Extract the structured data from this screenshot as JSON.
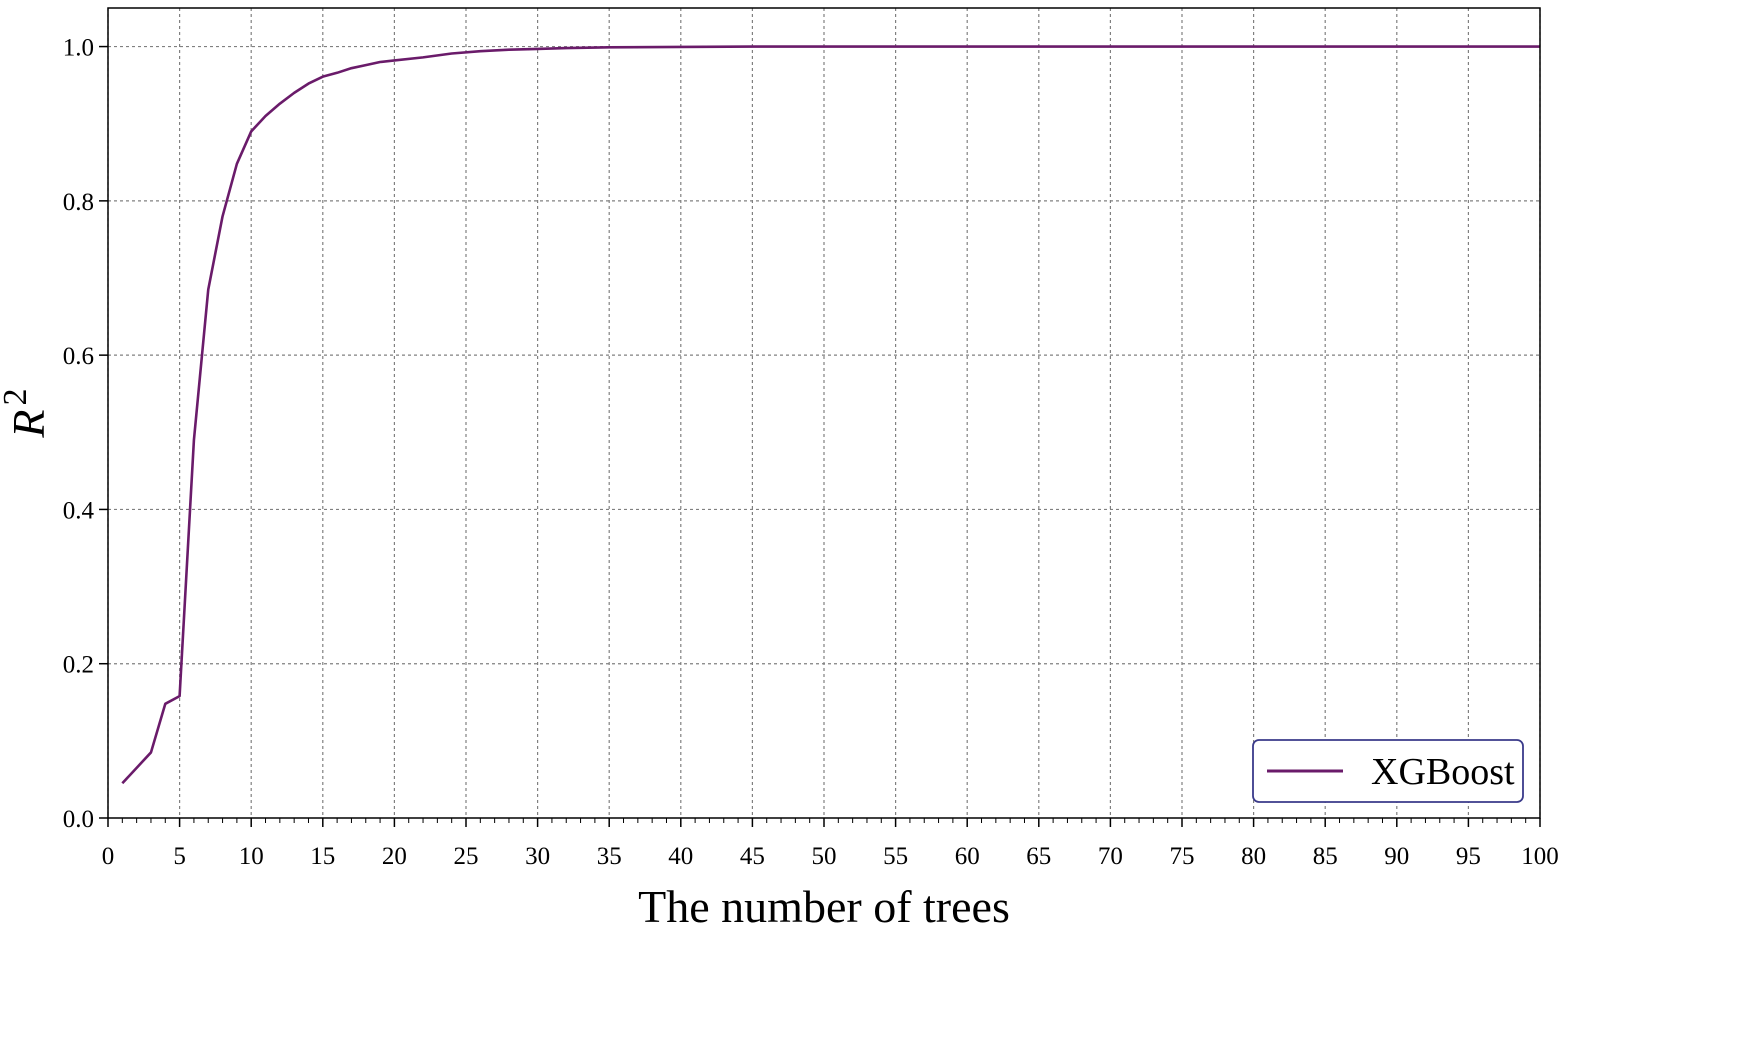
{
  "chart_data": {
    "type": "line",
    "xlabel": "The number of trees",
    "ylabel": "R",
    "ylabel_superscript": "2",
    "xlim": [
      0,
      100
    ],
    "ylim": [
      0.0,
      1.05
    ],
    "xticks": [
      0,
      5,
      10,
      15,
      20,
      25,
      30,
      35,
      40,
      45,
      50,
      55,
      60,
      65,
      70,
      75,
      80,
      85,
      90,
      95,
      100
    ],
    "xtick_labels": [
      "0",
      "5",
      "10",
      "15",
      "20",
      "25",
      "30",
      "35",
      "40",
      "45",
      "50",
      "55",
      "60",
      "65",
      "70",
      "75",
      "80",
      "85",
      "90",
      "95",
      "100"
    ],
    "yticks": [
      0.0,
      0.2,
      0.4,
      0.6,
      0.8,
      1.0
    ],
    "ytick_labels": [
      "0.0",
      "0.2",
      "0.4",
      "0.6",
      "0.8",
      "1.0"
    ],
    "x_minor_step": 1,
    "grid": true,
    "legend_position": "bottom-right",
    "series": [
      {
        "name": "XGBoost",
        "color": "#6a1b6a",
        "x": [
          1,
          2,
          3,
          4,
          5,
          6,
          7,
          8,
          9,
          10,
          11,
          12,
          13,
          14,
          15,
          16,
          17,
          18,
          19,
          20,
          22,
          24,
          26,
          28,
          30,
          32,
          35,
          40,
          45,
          50,
          60,
          70,
          80,
          90,
          100
        ],
        "y": [
          0.045,
          0.065,
          0.085,
          0.148,
          0.158,
          0.49,
          0.685,
          0.78,
          0.848,
          0.89,
          0.91,
          0.926,
          0.94,
          0.952,
          0.961,
          0.966,
          0.972,
          0.976,
          0.98,
          0.982,
          0.986,
          0.991,
          0.994,
          0.996,
          0.997,
          0.998,
          0.999,
          0.9995,
          1.0,
          1.0,
          1.0,
          1.0,
          1.0,
          1.0,
          1.0
        ]
      }
    ]
  }
}
